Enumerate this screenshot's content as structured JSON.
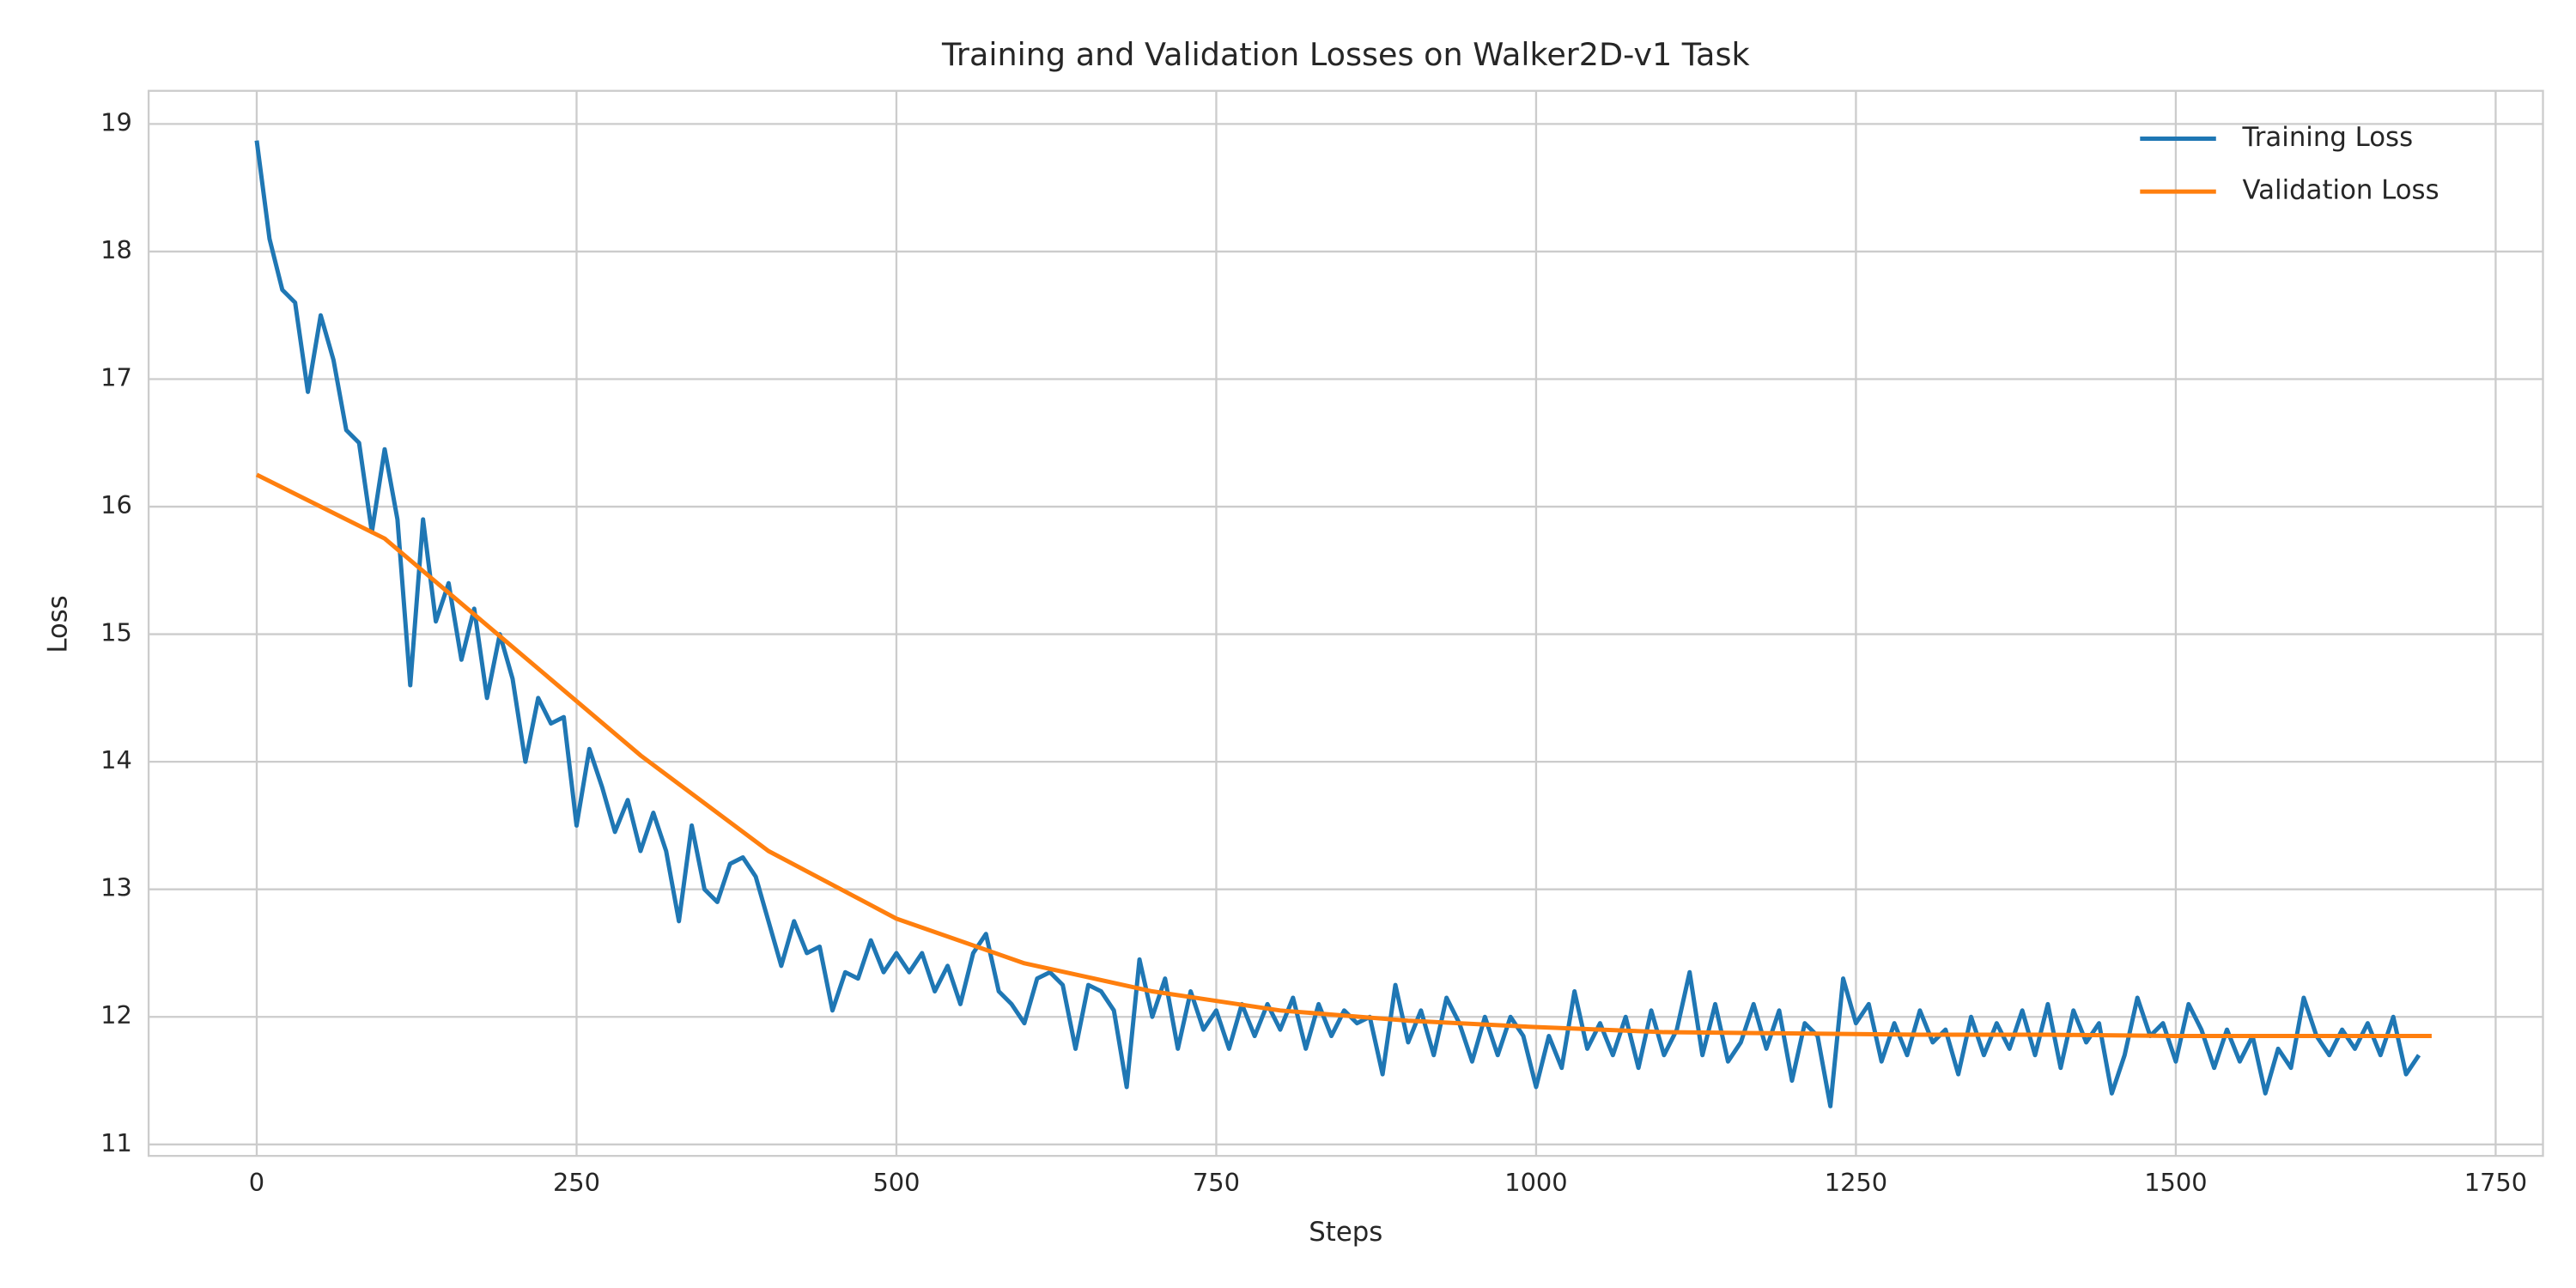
{
  "chart_data": {
    "type": "line",
    "title": "Training and Validation Losses on Walker2D-v1 Task",
    "x_label": "Steps",
    "y_label": "Loss",
    "xlim": [
      -84.5,
      1787
    ],
    "ylim": [
      10.91,
      19.26
    ],
    "xticks": [
      0,
      250,
      500,
      750,
      1000,
      1250,
      1500,
      1750
    ],
    "yticks": [
      11,
      12,
      13,
      14,
      15,
      16,
      17,
      18,
      19
    ],
    "grid": true,
    "legend": "upper right",
    "series": [
      {
        "name": "Training Loss",
        "color": "#1f77b4",
        "x": [
          0,
          10,
          20,
          30,
          40,
          50,
          60,
          70,
          80,
          90,
          100,
          110,
          120,
          130,
          140,
          150,
          160,
          170,
          180,
          190,
          200,
          210,
          220,
          230,
          240,
          250,
          260,
          270,
          280,
          290,
          300,
          310,
          320,
          330,
          340,
          350,
          360,
          370,
          380,
          390,
          400,
          410,
          420,
          430,
          440,
          450,
          460,
          470,
          480,
          490,
          500,
          510,
          520,
          530,
          540,
          550,
          560,
          570,
          580,
          590,
          600,
          610,
          620,
          630,
          640,
          650,
          660,
          670,
          680,
          690,
          700,
          710,
          720,
          730,
          740,
          750,
          760,
          770,
          780,
          790,
          800,
          810,
          820,
          830,
          840,
          850,
          860,
          870,
          880,
          890,
          900,
          910,
          920,
          930,
          940,
          950,
          960,
          970,
          980,
          990,
          1000,
          1010,
          1020,
          1030,
          1040,
          1050,
          1060,
          1070,
          1080,
          1090,
          1100,
          1110,
          1120,
          1130,
          1140,
          1150,
          1160,
          1170,
          1180,
          1190,
          1200,
          1210,
          1220,
          1230,
          1240,
          1250,
          1260,
          1270,
          1280,
          1290,
          1300,
          1310,
          1320,
          1330,
          1340,
          1350,
          1360,
          1370,
          1380,
          1390,
          1400,
          1410,
          1420,
          1430,
          1440,
          1450,
          1460,
          1470,
          1480,
          1490,
          1500,
          1510,
          1520,
          1530,
          1540,
          1550,
          1560,
          1570,
          1580,
          1590,
          1600,
          1610,
          1620,
          1630,
          1640,
          1650,
          1660,
          1670,
          1680,
          1690
        ],
        "values": [
          18.87,
          18.1,
          17.7,
          17.6,
          16.9,
          17.5,
          17.15,
          16.6,
          16.5,
          15.8,
          16.45,
          15.9,
          14.6,
          15.9,
          15.1,
          15.4,
          14.8,
          15.2,
          14.5,
          15.0,
          14.65,
          14.0,
          14.5,
          14.3,
          14.35,
          13.5,
          14.1,
          13.8,
          13.45,
          13.7,
          13.3,
          13.6,
          13.3,
          12.75,
          13.5,
          13.0,
          12.9,
          13.2,
          13.25,
          13.1,
          12.75,
          12.4,
          12.75,
          12.5,
          12.55,
          12.05,
          12.35,
          12.3,
          12.6,
          12.35,
          12.5,
          12.35,
          12.5,
          12.2,
          12.4,
          12.1,
          12.5,
          12.65,
          12.2,
          12.1,
          11.95,
          12.3,
          12.35,
          12.25,
          11.75,
          12.25,
          12.2,
          12.05,
          11.45,
          12.45,
          12.0,
          12.3,
          11.75,
          12.2,
          11.9,
          12.05,
          11.75,
          12.1,
          11.85,
          12.1,
          11.9,
          12.15,
          11.75,
          12.1,
          11.85,
          12.05,
          11.95,
          12.0,
          11.55,
          12.25,
          11.8,
          12.05,
          11.7,
          12.15,
          11.95,
          11.65,
          12.0,
          11.7,
          12.0,
          11.85,
          11.45,
          11.85,
          11.6,
          12.2,
          11.75,
          11.95,
          11.7,
          12.0,
          11.6,
          12.05,
          11.7,
          11.9,
          12.35,
          11.7,
          12.1,
          11.65,
          11.8,
          12.1,
          11.75,
          12.05,
          11.5,
          11.95,
          11.85,
          11.3,
          12.3,
          11.95,
          12.1,
          11.65,
          11.95,
          11.7,
          12.05,
          11.8,
          11.9,
          11.55,
          12.0,
          11.7,
          11.95,
          11.75,
          12.05,
          11.7,
          12.1,
          11.6,
          12.05,
          11.8,
          11.95,
          11.4,
          11.7,
          12.15,
          11.85,
          11.95,
          11.65,
          12.1,
          11.9,
          11.6,
          11.9,
          11.65,
          11.85,
          11.4,
          11.75,
          11.6,
          12.15,
          11.85,
          11.7,
          11.9,
          11.75,
          11.95,
          11.7,
          12.0,
          11.55,
          11.7
        ]
      },
      {
        "name": "Validation Loss",
        "color": "#ff7f0e",
        "x": [
          0,
          100,
          200,
          300,
          400,
          500,
          600,
          700,
          800,
          900,
          1000,
          1100,
          1200,
          1300,
          1400,
          1500,
          1600,
          1700
        ],
        "values": [
          16.25,
          15.75,
          14.9,
          14.05,
          13.3,
          12.77,
          12.42,
          12.2,
          12.05,
          11.97,
          11.92,
          11.88,
          11.87,
          11.86,
          11.86,
          11.85,
          11.85,
          11.85
        ]
      }
    ]
  }
}
